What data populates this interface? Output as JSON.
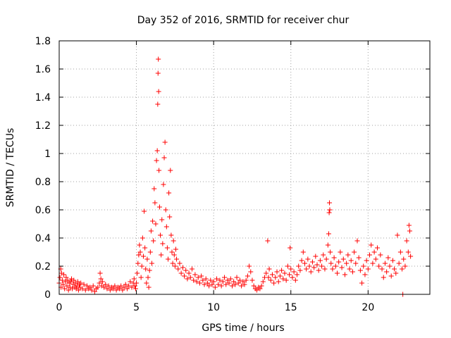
{
  "chart_data": {
    "type": "scatter",
    "title": "Day 352 of 2016, SRMTID for receiver chur",
    "xlabel": "GPS time / hours",
    "ylabel": "SRMTID / TECUs",
    "xlim": [
      0,
      24
    ],
    "ylim": [
      0,
      1.8
    ],
    "xticks": [
      0,
      5,
      10,
      15,
      20
    ],
    "yticks": [
      0,
      0.2,
      0.4,
      0.6,
      0.8,
      1,
      1.2,
      1.4,
      1.6,
      1.8
    ],
    "xtick_labels": [
      "0",
      "5",
      "10",
      "15",
      "20"
    ],
    "ytick_labels": [
      "0",
      "0.2",
      "0.4",
      "0.6",
      "0.8",
      "1",
      "1.2",
      "1.4",
      "1.6",
      "1.8"
    ],
    "grid": true,
    "marker": "+",
    "series": [
      {
        "name": "SRMTID",
        "color": "#ff0000",
        "points": [
          [
            0.0,
            0.08
          ],
          [
            0.05,
            0.12
          ],
          [
            0.1,
            0.18
          ],
          [
            0.12,
            0.05
          ],
          [
            0.15,
            0.15
          ],
          [
            0.2,
            0.1
          ],
          [
            0.25,
            0.07
          ],
          [
            0.3,
            0.14
          ],
          [
            0.35,
            0.04
          ],
          [
            0.4,
            0.09
          ],
          [
            0.45,
            0.12
          ],
          [
            0.5,
            0.06
          ],
          [
            0.55,
            0.1
          ],
          [
            0.6,
            0.03
          ],
          [
            0.65,
            0.08
          ],
          [
            0.7,
            0.05
          ],
          [
            0.75,
            0.09
          ],
          [
            0.8,
            0.11
          ],
          [
            0.85,
            0.04
          ],
          [
            0.9,
            0.07
          ],
          [
            0.95,
            0.1
          ],
          [
            1.0,
            0.05
          ],
          [
            1.05,
            0.08
          ],
          [
            1.1,
            0.04
          ],
          [
            1.15,
            0.06
          ],
          [
            1.2,
            0.09
          ],
          [
            1.25,
            0.03
          ],
          [
            1.3,
            0.07
          ],
          [
            1.35,
            0.05
          ],
          [
            1.4,
            0.08
          ],
          [
            1.5,
            0.04
          ],
          [
            1.6,
            0.07
          ],
          [
            1.7,
            0.03
          ],
          [
            1.8,
            0.06
          ],
          [
            1.9,
            0.04
          ],
          [
            2.0,
            0.05
          ],
          [
            2.1,
            0.03
          ],
          [
            2.2,
            0.06
          ],
          [
            2.3,
            0.02
          ],
          [
            2.4,
            0.04
          ],
          [
            2.5,
            0.05
          ],
          [
            2.6,
            0.08
          ],
          [
            2.65,
            0.15
          ],
          [
            2.7,
            0.11
          ],
          [
            2.75,
            0.06
          ],
          [
            2.8,
            0.09
          ],
          [
            2.9,
            0.05
          ],
          [
            3.0,
            0.07
          ],
          [
            3.1,
            0.04
          ],
          [
            3.2,
            0.06
          ],
          [
            3.3,
            0.03
          ],
          [
            3.4,
            0.05
          ],
          [
            3.5,
            0.04
          ],
          [
            3.6,
            0.06
          ],
          [
            3.7,
            0.03
          ],
          [
            3.8,
            0.05
          ],
          [
            3.9,
            0.04
          ],
          [
            4.0,
            0.06
          ],
          [
            4.1,
            0.03
          ],
          [
            4.2,
            0.05
          ],
          [
            4.3,
            0.07
          ],
          [
            4.4,
            0.04
          ],
          [
            4.5,
            0.06
          ],
          [
            4.6,
            0.09
          ],
          [
            4.7,
            0.05
          ],
          [
            4.8,
            0.08
          ],
          [
            4.85,
            0.11
          ],
          [
            4.9,
            0.06
          ],
          [
            4.95,
            0.04
          ],
          [
            5.0,
            0.08
          ],
          [
            5.05,
            0.15
          ],
          [
            5.1,
            0.22
          ],
          [
            5.15,
            0.28
          ],
          [
            5.2,
            0.35
          ],
          [
            5.25,
            0.3
          ],
          [
            5.3,
            0.12
          ],
          [
            5.35,
            0.2
          ],
          [
            5.4,
            0.4
          ],
          [
            5.45,
            0.27
          ],
          [
            5.5,
            0.59
          ],
          [
            5.55,
            0.33
          ],
          [
            5.6,
            0.18
          ],
          [
            5.65,
            0.08
          ],
          [
            5.7,
            0.25
          ],
          [
            5.75,
            0.12
          ],
          [
            5.8,
            0.05
          ],
          [
            5.85,
            0.17
          ],
          [
            5.9,
            0.3
          ],
          [
            5.95,
            0.45
          ],
          [
            6.0,
            0.22
          ],
          [
            6.05,
            0.52
          ],
          [
            6.1,
            0.38
          ],
          [
            6.15,
            0.75
          ],
          [
            6.2,
            0.65
          ],
          [
            6.25,
            0.5
          ],
          [
            6.3,
            0.95
          ],
          [
            6.35,
            1.02
          ],
          [
            6.38,
            1.35
          ],
          [
            6.4,
            1.57
          ],
          [
            6.42,
            1.67
          ],
          [
            6.44,
            1.44
          ],
          [
            6.46,
            0.88
          ],
          [
            6.5,
            0.62
          ],
          [
            6.55,
            0.42
          ],
          [
            6.6,
            0.28
          ],
          [
            6.65,
            0.53
          ],
          [
            6.7,
            0.36
          ],
          [
            6.75,
            0.78
          ],
          [
            6.8,
            0.97
          ],
          [
            6.85,
            1.08
          ],
          [
            6.9,
            0.6
          ],
          [
            6.95,
            0.48
          ],
          [
            7.0,
            0.33
          ],
          [
            7.05,
            0.25
          ],
          [
            7.1,
            0.72
          ],
          [
            7.15,
            0.55
          ],
          [
            7.2,
            0.88
          ],
          [
            7.25,
            0.42
          ],
          [
            7.3,
            0.3
          ],
          [
            7.35,
            0.22
          ],
          [
            7.4,
            0.38
          ],
          [
            7.45,
            0.28
          ],
          [
            7.5,
            0.2
          ],
          [
            7.55,
            0.32
          ],
          [
            7.6,
            0.25
          ],
          [
            7.7,
            0.18
          ],
          [
            7.8,
            0.22
          ],
          [
            7.9,
            0.15
          ],
          [
            8.0,
            0.19
          ],
          [
            8.1,
            0.13
          ],
          [
            8.2,
            0.17
          ],
          [
            8.3,
            0.11
          ],
          [
            8.4,
            0.15
          ],
          [
            8.5,
            0.12
          ],
          [
            8.6,
            0.18
          ],
          [
            8.7,
            0.1
          ],
          [
            8.8,
            0.14
          ],
          [
            8.9,
            0.09
          ],
          [
            9.0,
            0.12
          ],
          [
            9.1,
            0.08
          ],
          [
            9.2,
            0.13
          ],
          [
            9.3,
            0.1
          ],
          [
            9.4,
            0.07
          ],
          [
            9.5,
            0.11
          ],
          [
            9.6,
            0.08
          ],
          [
            9.7,
            0.06
          ],
          [
            9.8,
            0.1
          ],
          [
            9.9,
            0.07
          ],
          [
            10.0,
            0.09
          ],
          [
            10.1,
            0.05
          ],
          [
            10.2,
            0.11
          ],
          [
            10.3,
            0.07
          ],
          [
            10.4,
            0.1
          ],
          [
            10.5,
            0.06
          ],
          [
            10.6,
            0.09
          ],
          [
            10.7,
            0.12
          ],
          [
            10.8,
            0.07
          ],
          [
            10.9,
            0.1
          ],
          [
            11.0,
            0.08
          ],
          [
            11.1,
            0.11
          ],
          [
            11.2,
            0.06
          ],
          [
            11.3,
            0.09
          ],
          [
            11.4,
            0.07
          ],
          [
            11.5,
            0.12
          ],
          [
            11.6,
            0.08
          ],
          [
            11.7,
            0.1
          ],
          [
            11.8,
            0.06
          ],
          [
            11.9,
            0.09
          ],
          [
            12.0,
            0.07
          ],
          [
            12.1,
            0.1
          ],
          [
            12.2,
            0.13
          ],
          [
            12.3,
            0.2
          ],
          [
            12.4,
            0.16
          ],
          [
            12.5,
            0.1
          ],
          [
            12.6,
            0.06
          ],
          [
            12.7,
            0.04
          ],
          [
            12.8,
            0.03
          ],
          [
            12.9,
            0.05
          ],
          [
            13.0,
            0.04
          ],
          [
            13.1,
            0.06
          ],
          [
            13.2,
            0.09
          ],
          [
            13.3,
            0.12
          ],
          [
            13.4,
            0.15
          ],
          [
            13.5,
            0.38
          ],
          [
            13.55,
            0.12
          ],
          [
            13.6,
            0.18
          ],
          [
            13.7,
            0.1
          ],
          [
            13.8,
            0.14
          ],
          [
            13.9,
            0.08
          ],
          [
            14.0,
            0.12
          ],
          [
            14.1,
            0.16
          ],
          [
            14.2,
            0.09
          ],
          [
            14.3,
            0.13
          ],
          [
            14.4,
            0.17
          ],
          [
            14.5,
            0.11
          ],
          [
            14.6,
            0.15
          ],
          [
            14.7,
            0.1
          ],
          [
            14.8,
            0.2
          ],
          [
            14.9,
            0.14
          ],
          [
            14.95,
            0.33
          ],
          [
            15.0,
            0.18
          ],
          [
            15.1,
            0.12
          ],
          [
            15.2,
            0.16
          ],
          [
            15.3,
            0.1
          ],
          [
            15.4,
            0.14
          ],
          [
            15.5,
            0.2
          ],
          [
            15.6,
            0.17
          ],
          [
            15.7,
            0.24
          ],
          [
            15.8,
            0.3
          ],
          [
            15.9,
            0.22
          ],
          [
            16.0,
            0.18
          ],
          [
            16.1,
            0.25
          ],
          [
            16.2,
            0.2
          ],
          [
            16.3,
            0.16
          ],
          [
            16.4,
            0.23
          ],
          [
            16.5,
            0.19
          ],
          [
            16.6,
            0.27
          ],
          [
            16.7,
            0.21
          ],
          [
            16.8,
            0.17
          ],
          [
            16.9,
            0.24
          ],
          [
            17.0,
            0.2
          ],
          [
            17.1,
            0.28
          ],
          [
            17.2,
            0.18
          ],
          [
            17.3,
            0.25
          ],
          [
            17.4,
            0.35
          ],
          [
            17.45,
            0.43
          ],
          [
            17.48,
            0.58
          ],
          [
            17.5,
            0.65
          ],
          [
            17.52,
            0.6
          ],
          [
            17.55,
            0.3
          ],
          [
            17.6,
            0.22
          ],
          [
            17.7,
            0.18
          ],
          [
            17.8,
            0.26
          ],
          [
            17.9,
            0.2
          ],
          [
            18.0,
            0.15
          ],
          [
            18.1,
            0.23
          ],
          [
            18.2,
            0.3
          ],
          [
            18.3,
            0.19
          ],
          [
            18.4,
            0.25
          ],
          [
            18.5,
            0.14
          ],
          [
            18.6,
            0.22
          ],
          [
            18.7,
            0.28
          ],
          [
            18.8,
            0.18
          ],
          [
            18.9,
            0.24
          ],
          [
            19.0,
            0.16
          ],
          [
            19.1,
            0.3
          ],
          [
            19.2,
            0.22
          ],
          [
            19.3,
            0.38
          ],
          [
            19.4,
            0.26
          ],
          [
            19.5,
            0.17
          ],
          [
            19.6,
            0.08
          ],
          [
            19.7,
            0.2
          ],
          [
            19.8,
            0.14
          ],
          [
            19.9,
            0.24
          ],
          [
            20.0,
            0.18
          ],
          [
            20.1,
            0.28
          ],
          [
            20.2,
            0.35
          ],
          [
            20.3,
            0.22
          ],
          [
            20.4,
            0.3
          ],
          [
            20.5,
            0.25
          ],
          [
            20.6,
            0.33
          ],
          [
            20.7,
            0.2
          ],
          [
            20.8,
            0.28
          ],
          [
            20.9,
            0.18
          ],
          [
            21.0,
            0.12
          ],
          [
            21.1,
            0.22
          ],
          [
            21.2,
            0.16
          ],
          [
            21.3,
            0.26
          ],
          [
            21.4,
            0.2
          ],
          [
            21.5,
            0.13
          ],
          [
            21.6,
            0.24
          ],
          [
            21.7,
            0.18
          ],
          [
            21.8,
            0.15
          ],
          [
            21.9,
            0.42
          ],
          [
            22.0,
            0.22
          ],
          [
            22.1,
            0.3
          ],
          [
            22.2,
            0.18
          ],
          [
            22.25,
            0.0
          ],
          [
            22.3,
            0.25
          ],
          [
            22.4,
            0.2
          ],
          [
            22.5,
            0.38
          ],
          [
            22.6,
            0.3
          ],
          [
            22.65,
            0.49
          ],
          [
            22.7,
            0.45
          ],
          [
            22.75,
            0.27
          ]
        ]
      }
    ]
  }
}
